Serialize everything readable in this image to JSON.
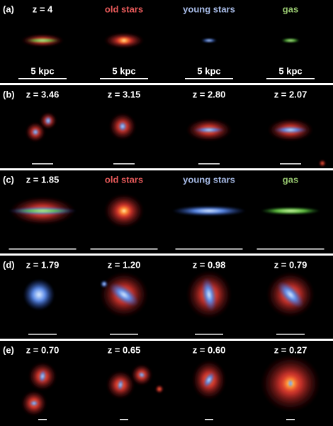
{
  "panels": [
    {
      "label": "(a)",
      "cells": [
        {
          "text": "z = 4",
          "scale": "5 kpc"
        },
        {
          "text": "old stars",
          "scale": "5 kpc"
        },
        {
          "text": "young stars",
          "scale": "5 kpc"
        },
        {
          "text": "gas",
          "scale": "5 kpc"
        }
      ]
    },
    {
      "label": "(b)",
      "cells": [
        {
          "text": "z = 3.46"
        },
        {
          "text": "z = 3.15"
        },
        {
          "text": "z = 2.80"
        },
        {
          "text": "z = 2.07"
        }
      ]
    },
    {
      "label": "(c)",
      "cells": [
        {
          "text": "z = 1.85"
        },
        {
          "text": "old stars"
        },
        {
          "text": "young stars"
        },
        {
          "text": "gas"
        }
      ]
    },
    {
      "label": "(d)",
      "cells": [
        {
          "text": "z = 1.79"
        },
        {
          "text": "z = 1.20"
        },
        {
          "text": "z = 0.98"
        },
        {
          "text": "z = 0.79"
        }
      ]
    },
    {
      "label": "(e)",
      "cells": [
        {
          "text": "z = 0.70"
        },
        {
          "text": "z = 0.65"
        },
        {
          "text": "z = 0.60"
        },
        {
          "text": "z = 0.27"
        }
      ]
    }
  ]
}
